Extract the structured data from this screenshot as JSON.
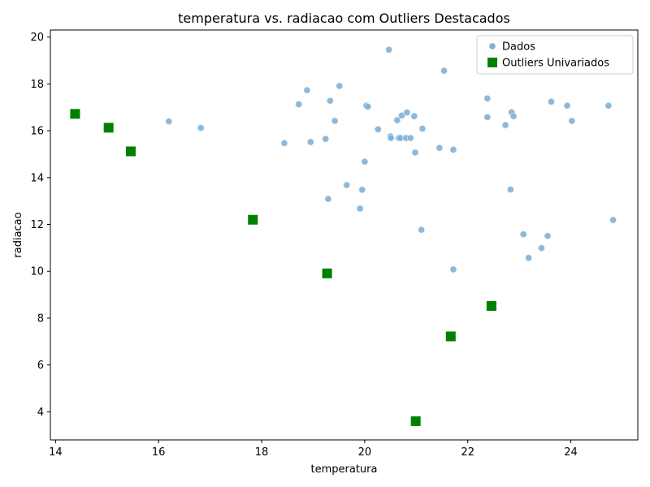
{
  "chart_data": {
    "type": "scatter",
    "title": "temperatura vs. radiacao com Outliers Destacados",
    "xlabel": "temperatura",
    "ylabel": "radiacao",
    "xlim": [
      13.9,
      25.3
    ],
    "ylim": [
      2.8,
      20.3
    ],
    "xticks": [
      14,
      16,
      18,
      20,
      22,
      24
    ],
    "yticks": [
      4,
      6,
      8,
      10,
      12,
      14,
      16,
      18,
      20
    ],
    "grid": false,
    "legend_position": "top-right",
    "colors": {
      "dados": "#7fb0d5",
      "dados_edge": "#dfeaf3",
      "outliers": "#008000"
    },
    "series": [
      {
        "name": "Dados",
        "marker": "circle",
        "points": [
          [
            16.2,
            16.4
          ],
          [
            16.82,
            16.12
          ],
          [
            18.44,
            15.47
          ],
          [
            18.72,
            17.13
          ],
          [
            18.88,
            17.73
          ],
          [
            18.95,
            15.52
          ],
          [
            19.24,
            15.65
          ],
          [
            19.29,
            13.09
          ],
          [
            19.33,
            17.28
          ],
          [
            19.42,
            16.42
          ],
          [
            19.51,
            17.91
          ],
          [
            19.65,
            13.68
          ],
          [
            19.91,
            12.68
          ],
          [
            19.95,
            13.48
          ],
          [
            20.0,
            14.68
          ],
          [
            20.03,
            17.07
          ],
          [
            20.06,
            17.03
          ],
          [
            20.26,
            16.06
          ],
          [
            20.47,
            19.46
          ],
          [
            20.5,
            15.76
          ],
          [
            20.51,
            15.69
          ],
          [
            20.63,
            16.45
          ],
          [
            20.66,
            15.69
          ],
          [
            20.69,
            15.69
          ],
          [
            20.72,
            16.65
          ],
          [
            20.8,
            15.69
          ],
          [
            20.82,
            16.78
          ],
          [
            20.89,
            15.69
          ],
          [
            20.96,
            16.62
          ],
          [
            20.98,
            15.07
          ],
          [
            21.1,
            11.77
          ],
          [
            21.12,
            16.09
          ],
          [
            21.45,
            15.27
          ],
          [
            21.54,
            18.56
          ],
          [
            21.72,
            15.19
          ],
          [
            21.72,
            10.08
          ],
          [
            22.38,
            17.38
          ],
          [
            22.38,
            16.58
          ],
          [
            22.73,
            16.24
          ],
          [
            22.83,
            13.49
          ],
          [
            22.85,
            16.79
          ],
          [
            22.89,
            16.62
          ],
          [
            23.08,
            11.58
          ],
          [
            23.18,
            10.57
          ],
          [
            23.43,
            10.99
          ],
          [
            23.55,
            11.51
          ],
          [
            23.62,
            17.24
          ],
          [
            23.93,
            17.07
          ],
          [
            24.02,
            16.42
          ],
          [
            24.73,
            17.07
          ],
          [
            24.82,
            12.19
          ]
        ]
      },
      {
        "name": "Outliers Univariados",
        "marker": "square",
        "points": [
          [
            14.38,
            16.72
          ],
          [
            15.03,
            16.13
          ],
          [
            15.46,
            15.12
          ],
          [
            17.83,
            12.2
          ],
          [
            19.27,
            9.91
          ],
          [
            20.99,
            3.6
          ],
          [
            21.67,
            7.22
          ],
          [
            22.46,
            8.52
          ]
        ]
      }
    ]
  }
}
